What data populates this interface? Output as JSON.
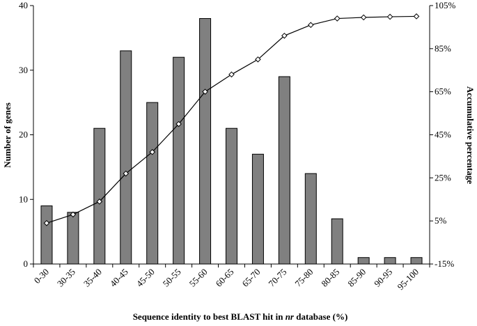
{
  "chart_data": {
    "type": "bar",
    "categories": [
      "0-30",
      "30-35",
      "35-40",
      "40-45",
      "45-50",
      "50-55",
      "55-60",
      "60-65",
      "65-70",
      "70-75",
      "75-80",
      "80-85",
      "85-90",
      "90-95",
      "95-100"
    ],
    "series": [
      {
        "type": "bar",
        "axis": "left",
        "color": "#808080",
        "values": [
          9,
          8,
          21,
          33,
          25,
          32,
          38,
          21,
          17,
          29,
          14,
          7,
          1,
          1,
          1
        ]
      },
      {
        "type": "line",
        "axis": "right",
        "marker": "diamond",
        "color": "#000000",
        "values": [
          4,
          8,
          14,
          27,
          37,
          50,
          65,
          73,
          80,
          91,
          96,
          99,
          99.5,
          99.8,
          100
        ]
      }
    ],
    "xlabel": {
      "pre": "Sequence identity to best BLAST hit in ",
      "italic": "nr",
      "post": " database (%)"
    },
    "ylabel": "Number of genes",
    "y2label": "Accumulative percentage",
    "ylim": [
      0,
      40
    ],
    "yticks": [
      0,
      10,
      20,
      30,
      40
    ],
    "y2lim": [
      -15,
      105
    ],
    "y2ticks": [
      -15,
      5,
      25,
      45,
      65,
      85,
      105
    ],
    "y2tick_labels": [
      "-15%",
      "5%",
      "25%",
      "45%",
      "65%",
      "85%",
      "105%"
    ],
    "grid": false,
    "legend": false
  }
}
